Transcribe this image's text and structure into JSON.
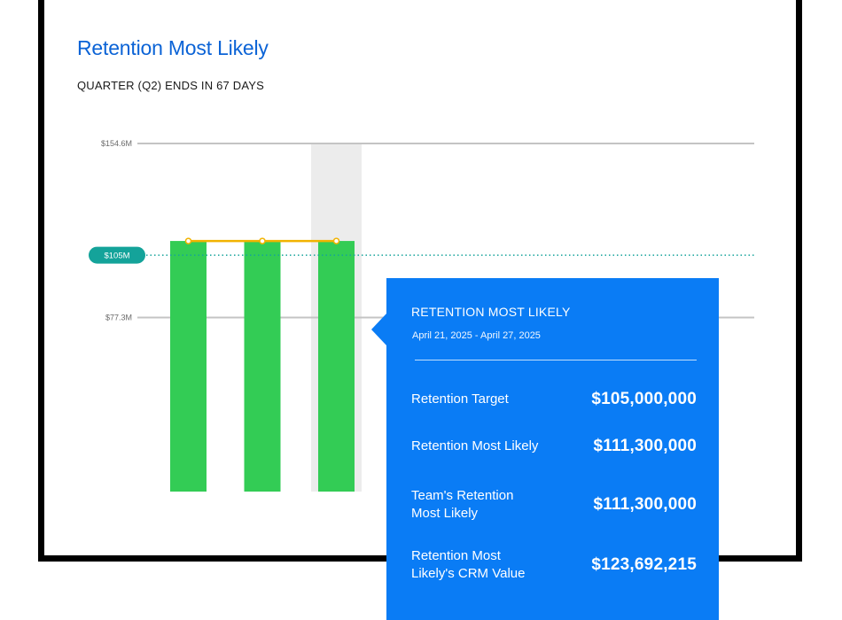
{
  "title": "Retention Most Likely",
  "subtitle": "QUARTER (Q2) ENDS IN 67 DAYS",
  "chart_data": {
    "type": "bar",
    "categories": [
      "",
      "",
      ""
    ],
    "values": [
      111.3,
      111.3,
      111.3
    ],
    "line_values": [
      111.3,
      111.3,
      111.3
    ],
    "target": {
      "value": 105,
      "label": "$105M"
    },
    "y_ticks": [
      {
        "value": 154.6,
        "label": "$154.6M"
      },
      {
        "value": 77.3,
        "label": "$77.3M"
      }
    ],
    "ylim": [
      0,
      154.6
    ],
    "highlighted_index": 2,
    "grid": true,
    "colors": {
      "bar": "#33cc55",
      "line": "#f2b300",
      "target": "#14a39a",
      "highlight": "#ececec",
      "grid": "#c4c4c4"
    }
  },
  "tooltip": {
    "title": "RETENTION MOST LIKELY",
    "date_range": "April 21, 2025 - April 27, 2025",
    "rows": [
      {
        "label": "Retention Target",
        "value": "$105,000,000"
      },
      {
        "label": "Retention Most Likely",
        "value": "$111,300,000"
      },
      {
        "label": "Team's Retention Most Likely",
        "value": "$111,300,000"
      },
      {
        "label": "Retention Most Likely's CRM Value",
        "value": "$123,692,215"
      }
    ],
    "color": "#0a7cf5"
  }
}
